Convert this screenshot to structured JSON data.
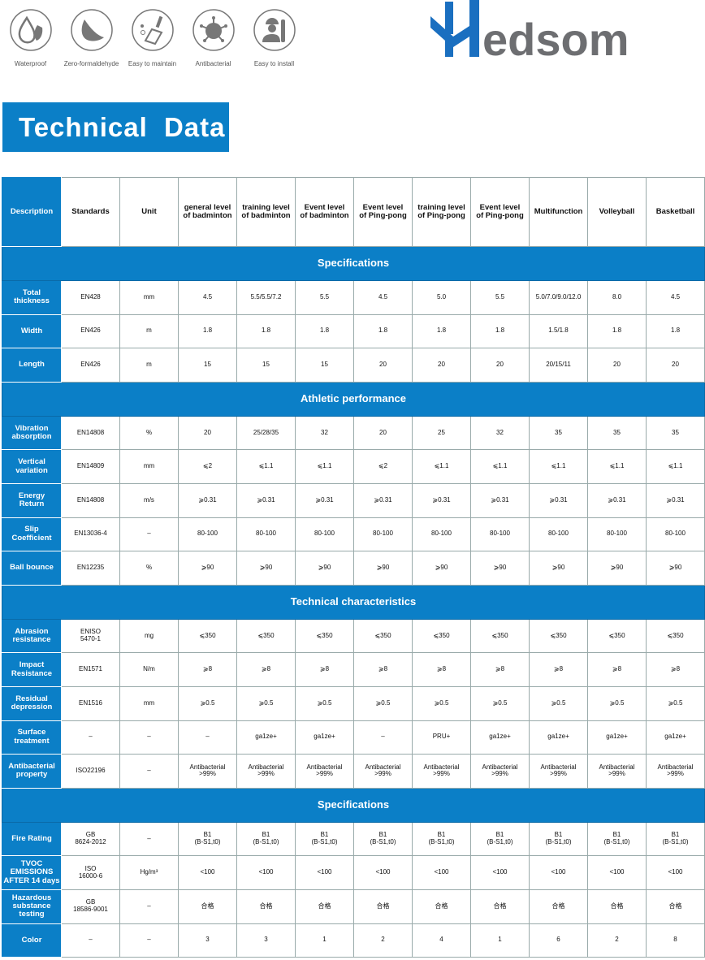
{
  "features": [
    {
      "icon": "water-drop-icon",
      "label": "Waterproof"
    },
    {
      "icon": "leaf-icon",
      "label": "Zero-formaldehyde"
    },
    {
      "icon": "broom-icon",
      "label": "Easy to maintain"
    },
    {
      "icon": "virus-icon",
      "label": "Antibacterial"
    },
    {
      "icon": "worker-wrench-icon",
      "label": "Easy to install"
    }
  ],
  "logo": {
    "text": "Hedsom",
    "colors": {
      "h": "#1a6fc0",
      "text": "#6d6e71"
    }
  },
  "banner": {
    "title": "Technical Data"
  },
  "colors": {
    "accent": "#0b7fc7"
  },
  "table": {
    "headers": [
      "Description",
      "Standards",
      "Unit",
      "general level\nof badminton",
      "training level\nof badminton",
      "Event level\nof badminton",
      "Event level\nof Ping-pong",
      "training level\nof Ping-pong",
      "Event level\nof Ping-pong",
      "Multifunction",
      "Volleyball",
      "Basketball"
    ],
    "groups": [
      {
        "title": "Specifications",
        "rows": [
          [
            "Total\nthickness",
            "EN428",
            "mm",
            "4.5",
            "5.5/5.5/7.2",
            "5.5",
            "4.5",
            "5.0",
            "5.5",
            "5.0/7.0/9.0/12.0",
            "8.0",
            "4.5"
          ],
          [
            "Width",
            "EN426",
            "m",
            "1.8",
            "1.8",
            "1.8",
            "1.8",
            "1.8",
            "1.8",
            "1.5/1.8",
            "1.8",
            "1.8"
          ],
          [
            "Length",
            "EN426",
            "m",
            "15",
            "15",
            "15",
            "20",
            "20",
            "20",
            "20/15/11",
            "20",
            "20"
          ]
        ]
      },
      {
        "title": "Athletic performance",
        "rows": [
          [
            "Vibration\nabsorption",
            "EN14808",
            "%",
            "20",
            "25/28/35",
            "32",
            "20",
            "25",
            "32",
            "35",
            "35",
            "35"
          ],
          [
            "Vertical\nvariation",
            "EN14809",
            "mm",
            "⩽2",
            "⩽1.1",
            "⩽1.1",
            "⩽2",
            "⩽1.1",
            "⩽1.1",
            "⩽1.1",
            "⩽1.1",
            "⩽1.1"
          ],
          [
            "Energy\nReturn",
            "EN14808",
            "m/s",
            "⩾0.31",
            "⩾0.31",
            "⩾0.31",
            "⩾0.31",
            "⩾0.31",
            "⩾0.31",
            "⩾0.31",
            "⩾0.31",
            "⩾0.31"
          ],
          [
            "Slip\nCoefficient",
            "EN13036-4",
            "–",
            "80-100",
            "80-100",
            "80-100",
            "80-100",
            "80-100",
            "80-100",
            "80-100",
            "80-100",
            "80-100"
          ],
          [
            "Ball bounce",
            "EN12235",
            "%",
            "⩾90",
            "⩾90",
            "⩾90",
            "⩾90",
            "⩾90",
            "⩾90",
            "⩾90",
            "⩾90",
            "⩾90"
          ]
        ]
      },
      {
        "title": "Technical characteristics",
        "rows": [
          [
            "Abrasion\nresistance",
            "ENISO\n5470-1",
            "mg",
            "⩽350",
            "⩽350",
            "⩽350",
            "⩽350",
            "⩽350",
            "⩽350",
            "⩽350",
            "⩽350",
            "⩽350"
          ],
          [
            "Impact\nResistance",
            "EN1571",
            "N/m",
            "⩾8",
            "⩾8",
            "⩾8",
            "⩾8",
            "⩾8",
            "⩾8",
            "⩾8",
            "⩾8",
            "⩾8"
          ],
          [
            "Residual\ndepression",
            "EN1516",
            "mm",
            "⩾0.5",
            "⩾0.5",
            "⩾0.5",
            "⩾0.5",
            "⩾0.5",
            "⩾0.5",
            "⩾0.5",
            "⩾0.5",
            "⩾0.5"
          ],
          [
            "Surface\ntreatment",
            "–",
            "–",
            "–",
            "ga1ze+",
            "ga1ze+",
            "–",
            "PRU+",
            "ga1ze+",
            "ga1ze+",
            "ga1ze+",
            "ga1ze+"
          ],
          [
            "Antibacterial\nproperty",
            "ISO22196",
            "–",
            "Antibacterial\n>99%",
            "Antibacterial\n>99%",
            "Antibacterial\n>99%",
            "Antibacterial\n>99%",
            "Antibacterial\n>99%",
            "Antibacterial\n>99%",
            "Antibacterial\n>99%",
            "Antibacterial\n>99%",
            "Antibacterial\n>99%"
          ]
        ]
      },
      {
        "title": "Specifications",
        "rows": [
          [
            "Fire Rating",
            "GB\n8624-2012",
            "–",
            "B1\n(B-S1,t0)",
            "B1\n(B-S1,t0)",
            "B1\n(B-S1,t0)",
            "B1\n(B-S1,t0)",
            "B1\n(B-S1,t0)",
            "B1\n(B-S1,t0)",
            "B1\n(B-S1,t0)",
            "B1\n(B-S1,t0)",
            "B1\n(B-S1,t0)"
          ],
          [
            "TVOC\nEMISSIONS\nAFTER 14 days",
            "ISO\n16000-6",
            "Hg/m³",
            "<100",
            "<100",
            "<100",
            "<100",
            "<100",
            "<100",
            "<100",
            "<100",
            "<100"
          ],
          [
            "Hazardous\nsubstance\ntesting",
            "GB\n18586-9001",
            "–",
            "合格",
            "合格",
            "合格",
            "合格",
            "合格",
            "合格",
            "合格",
            "合格",
            "合格"
          ],
          [
            "Color",
            "–",
            "–",
            "3",
            "3",
            "1",
            "2",
            "4",
            "1",
            "6",
            "2",
            "8"
          ]
        ]
      }
    ]
  }
}
